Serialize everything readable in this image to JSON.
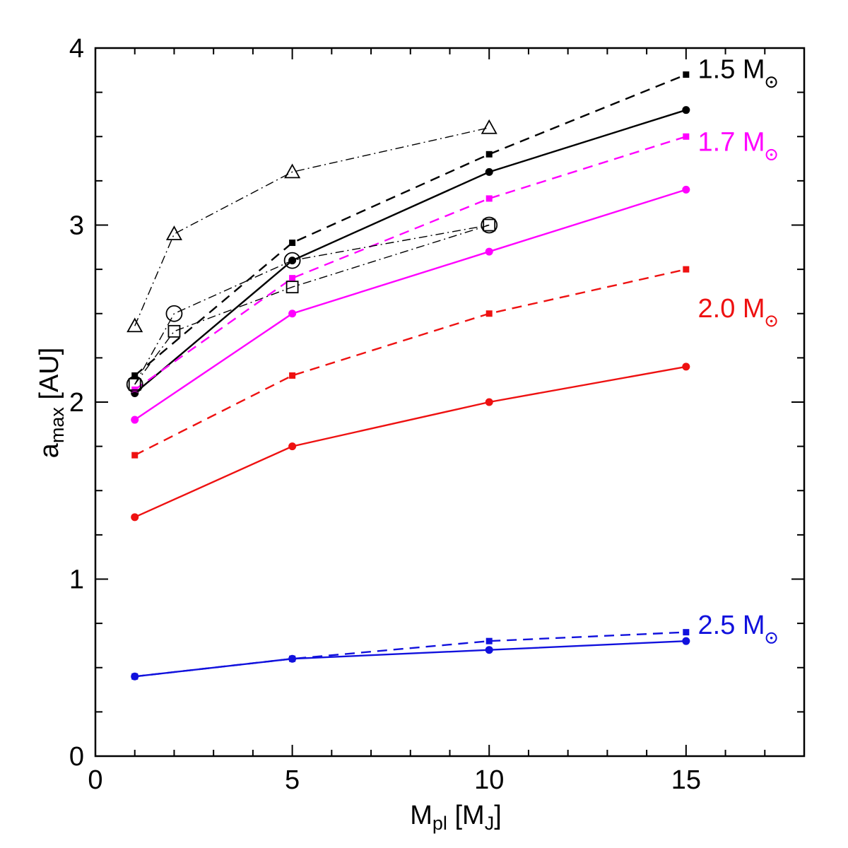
{
  "chart_data": {
    "type": "line",
    "xlabel": {
      "main": "M",
      "sub": "pl",
      "bracket_main": "M",
      "bracket_sub": "J"
    },
    "ylabel": {
      "main": "a",
      "sub": "max",
      "unit": "[AU]"
    },
    "xlim": [
      0,
      18
    ],
    "ylim": [
      0,
      4
    ],
    "xticks": [
      0,
      5,
      10,
      15
    ],
    "yticks": [
      0,
      1,
      2,
      3,
      4
    ],
    "colors": {
      "black": "#000000",
      "magenta": "#ff00ff",
      "red": "#ee1111",
      "blue": "#1111dd"
    },
    "group_labels": [
      {
        "name": "1.5",
        "unit": "M",
        "color": "black",
        "x": 15.3,
        "y": 3.83
      },
      {
        "name": "1.7",
        "unit": "M",
        "color": "magenta",
        "x": 15.3,
        "y": 3.42
      },
      {
        "name": "2.0",
        "unit": "M",
        "color": "red",
        "x": 15.3,
        "y": 2.48
      },
      {
        "name": "2.5",
        "unit": "M",
        "color": "blue",
        "x": 15.3,
        "y": 0.69
      }
    ],
    "series": [
      {
        "name": "1.5 Msun dashed",
        "color": "black",
        "style": "dashed",
        "marker": "square-filled",
        "x": [
          1,
          5,
          10,
          15
        ],
        "y": [
          2.15,
          2.9,
          3.4,
          3.85
        ]
      },
      {
        "name": "1.5 Msun solid",
        "color": "black",
        "style": "solid",
        "marker": "circle-filled",
        "x": [
          1,
          5,
          10,
          15
        ],
        "y": [
          2.05,
          2.8,
          3.3,
          3.65
        ]
      },
      {
        "name": "1.7 Msun dashed",
        "color": "magenta",
        "style": "dashed",
        "marker": "square-filled",
        "x": [
          1,
          5,
          10,
          15
        ],
        "y": [
          2.07,
          2.7,
          3.15,
          3.5
        ]
      },
      {
        "name": "1.7 Msun solid",
        "color": "magenta",
        "style": "solid",
        "marker": "circle-filled",
        "x": [
          1,
          5,
          10,
          15
        ],
        "y": [
          1.9,
          2.5,
          2.85,
          3.2
        ]
      },
      {
        "name": "2.0 Msun dashed",
        "color": "red",
        "style": "dashed",
        "marker": "square-filled",
        "x": [
          1,
          5,
          10,
          15
        ],
        "y": [
          1.7,
          2.15,
          2.5,
          2.75
        ]
      },
      {
        "name": "2.0 Msun solid",
        "color": "red",
        "style": "solid",
        "marker": "circle-filled",
        "x": [
          1,
          5,
          10,
          15
        ],
        "y": [
          1.35,
          1.75,
          2.0,
          2.2
        ]
      },
      {
        "name": "2.5 Msun dashed",
        "color": "blue",
        "style": "dashed",
        "marker": "square-filled",
        "x": [
          1,
          5,
          10,
          15
        ],
        "y": [
          0.45,
          0.55,
          0.65,
          0.7
        ]
      },
      {
        "name": "2.5 Msun solid",
        "color": "blue",
        "style": "solid",
        "marker": "circle-filled",
        "x": [
          1,
          5,
          10,
          15
        ],
        "y": [
          0.45,
          0.55,
          0.6,
          0.65
        ]
      },
      {
        "name": "triangles",
        "color": "black",
        "style": "dashdot",
        "marker": "triangle-open",
        "x": [
          1,
          2,
          5,
          10
        ],
        "y": [
          2.43,
          2.95,
          3.3,
          3.55
        ]
      },
      {
        "name": "circles",
        "color": "black",
        "style": "dashdot",
        "marker": "circle-open",
        "x": [
          1,
          2,
          5,
          10
        ],
        "y": [
          2.1,
          2.5,
          2.8,
          3.0
        ]
      },
      {
        "name": "squares",
        "color": "black",
        "style": "dashdot",
        "marker": "square-open",
        "x": [
          1,
          2,
          5,
          10
        ],
        "y": [
          2.1,
          2.4,
          2.65,
          3.0
        ]
      }
    ]
  }
}
